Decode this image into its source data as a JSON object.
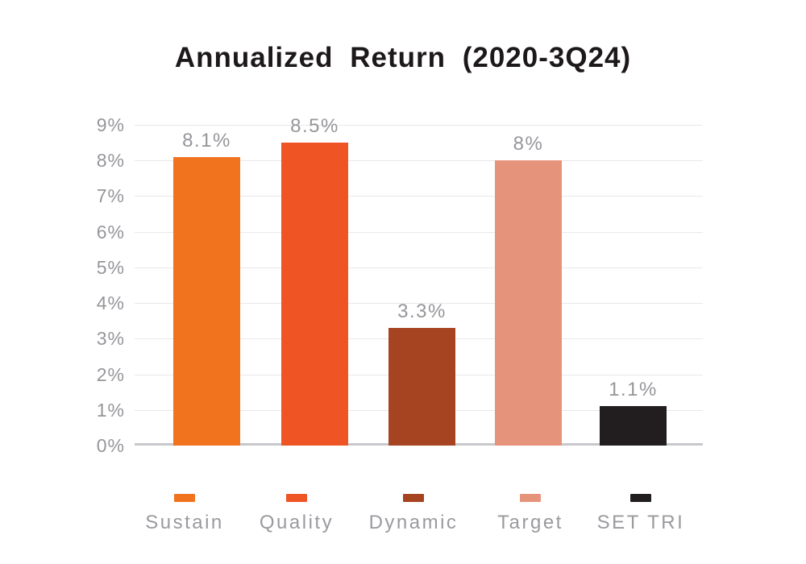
{
  "chart_data": {
    "type": "bar",
    "title": "Annualized Return (2020-3Q24)",
    "categories": [
      "Sustain",
      "Quality",
      "Dynamic",
      "Target",
      "SET TRI"
    ],
    "values": [
      8.1,
      8.5,
      3.3,
      8,
      1.1
    ],
    "value_labels": [
      "8.1%",
      "8.5%",
      "3.3%",
      "8%",
      "1.1%"
    ],
    "bar_colors": [
      "#f1731e",
      "#ef5424",
      "#a64320",
      "#e6937b",
      "#221e1f"
    ],
    "xlabel": "",
    "ylabel": "",
    "ylim": [
      0,
      9
    ],
    "yticks": [
      "9%",
      "8%",
      "7%",
      "6%",
      "5%",
      "4%",
      "3%",
      "2%",
      "1%",
      "0%"
    ],
    "grid": true,
    "legend_position": "bottom",
    "legend_entries": [
      "Sustain",
      "Quality",
      "Dynamic",
      "Target",
      "SET TRI"
    ]
  },
  "colors": {
    "background": "#ffffff",
    "title_text": "#1d191a",
    "axis_text": "#96969b",
    "data_label_text": "#96969b",
    "legend_text": "#9a9a9f",
    "gridline": "#e8e8ea",
    "baseline": "#c8c8cc"
  }
}
